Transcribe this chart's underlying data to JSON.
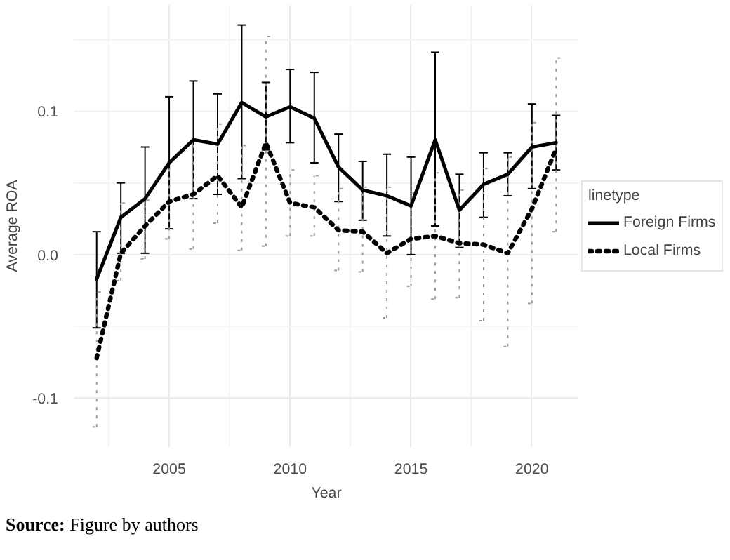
{
  "chart_data": {
    "type": "line",
    "xlabel": "Year",
    "ylabel": "Average ROA",
    "legend_title": "linetype",
    "x": [
      2002,
      2003,
      2004,
      2005,
      2006,
      2007,
      2008,
      2009,
      2010,
      2011,
      2012,
      2013,
      2014,
      2015,
      2016,
      2017,
      2018,
      2019,
      2020,
      2021
    ],
    "series": [
      {
        "name": "Foreign Firms",
        "color": "#000000",
        "line_style": "solid",
        "values": [
          -0.017,
          0.026,
          0.039,
          0.064,
          0.08,
          0.077,
          0.106,
          0.096,
          0.103,
          0.095,
          0.061,
          0.045,
          0.041,
          0.034,
          0.08,
          0.031,
          0.049,
          0.056,
          0.075,
          0.078
        ],
        "errors": [
          [
            -0.051,
            0.016
          ],
          [
            0.001,
            0.05
          ],
          [
            0.001,
            0.075
          ],
          [
            0.018,
            0.11
          ],
          [
            0.039,
            0.121
          ],
          [
            0.042,
            0.112
          ],
          [
            0.053,
            0.16
          ],
          [
            0.073,
            0.12
          ],
          [
            0.078,
            0.129
          ],
          [
            0.064,
            0.127
          ],
          [
            0.037,
            0.084
          ],
          [
            0.024,
            0.065
          ],
          [
            0.013,
            0.07
          ],
          [
            0.0,
            0.068
          ],
          [
            0.02,
            0.141
          ],
          [
            0.005,
            0.056
          ],
          [
            0.026,
            0.071
          ],
          [
            0.041,
            0.071
          ],
          [
            0.046,
            0.105
          ],
          [
            0.059,
            0.097
          ]
        ]
      },
      {
        "name": "Local Firms",
        "color": "#000000",
        "line_style": "dotted",
        "values": [
          -0.072,
          0.001,
          0.02,
          0.037,
          0.042,
          0.055,
          0.033,
          0.078,
          0.036,
          0.033,
          0.017,
          0.016,
          0.001,
          0.011,
          0.013,
          0.008,
          0.007,
          0.001,
          0.032,
          0.074
        ],
        "errors": [
          [
            -0.12,
            -0.026
          ],
          [
            -0.018,
            0.036
          ],
          [
            -0.003,
            0.038
          ],
          [
            0.011,
            0.065
          ],
          [
            0.004,
            0.08
          ],
          [
            0.022,
            0.091
          ],
          [
            0.003,
            0.076
          ],
          [
            0.006,
            0.152
          ],
          [
            0.013,
            0.059
          ],
          [
            0.013,
            0.055
          ],
          [
            -0.011,
            0.046
          ],
          [
            -0.012,
            0.047
          ],
          [
            -0.044,
            0.047
          ],
          [
            -0.022,
            0.043
          ],
          [
            -0.031,
            0.057
          ],
          [
            -0.03,
            0.045
          ],
          [
            -0.046,
            0.06
          ],
          [
            -0.064,
            0.068
          ],
          [
            -0.034,
            0.092
          ],
          [
            0.016,
            0.137
          ]
        ]
      }
    ],
    "xlim": [
      2001.05,
      2021.95
    ],
    "ylim": [
      -0.134,
      0.174
    ],
    "xticks": [
      2005,
      2010,
      2015,
      2020
    ],
    "yticks": [
      -0.1,
      {
        "value": 0,
        "label": "0.0"
      },
      0.1
    ],
    "grid": true,
    "legend": "right",
    "annotations": [
      "Source: Figure by authors"
    ]
  }
}
